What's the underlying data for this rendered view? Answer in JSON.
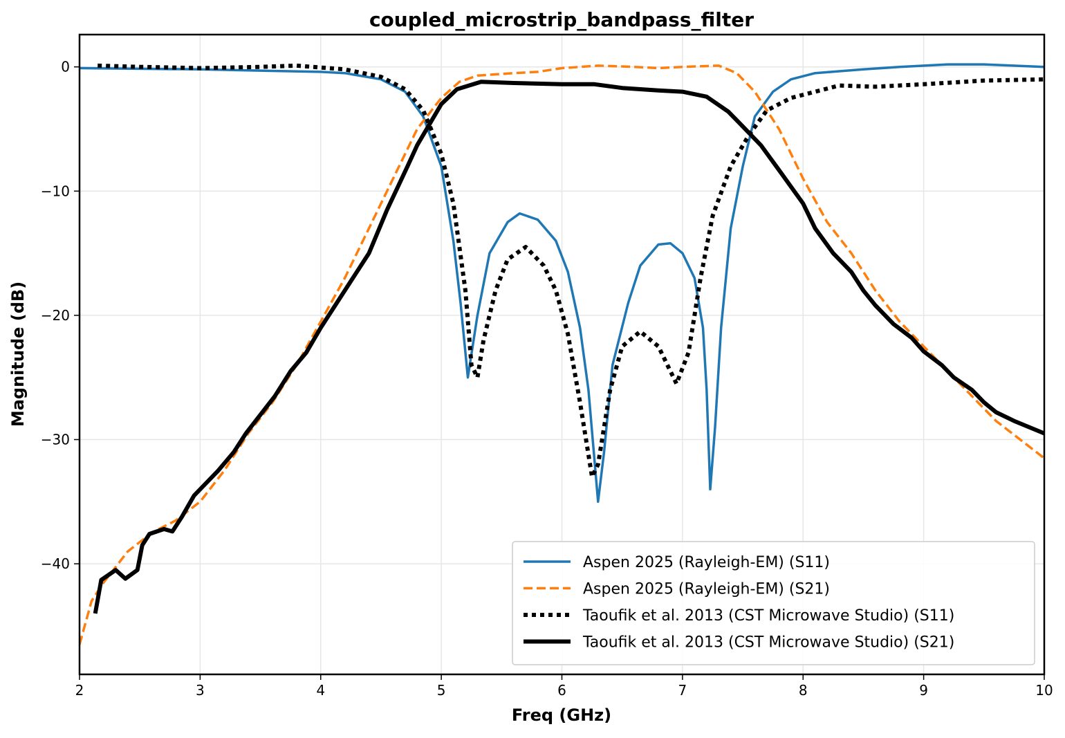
{
  "chart_data": {
    "type": "line",
    "title": "coupled_microstrip_bandpass_filter",
    "xlabel": "Freq (GHz)",
    "ylabel": "Magnitude (dB)",
    "xlim": [
      2,
      10
    ],
    "ylim": [
      -48.9,
      2.6
    ],
    "xticks": [
      2,
      3,
      4,
      5,
      6,
      7,
      8,
      9,
      10
    ],
    "yticks": [
      0,
      -10,
      -20,
      -30,
      -40
    ],
    "xtick_labels": [
      "2",
      "3",
      "4",
      "5",
      "6",
      "7",
      "8",
      "9",
      "10"
    ],
    "ytick_labels": [
      "0",
      "−10",
      "−20",
      "−30",
      "−40"
    ],
    "grid": true,
    "legend_position": "lower-right",
    "series": [
      {
        "name": "Aspen 2025 (Rayleigh-EM) (S11)",
        "color": "#1f77b4",
        "style": "solid",
        "x": [
          2,
          3,
          4,
          4.2,
          4.5,
          4.7,
          4.85,
          5.0,
          5.1,
          5.16,
          5.22,
          5.3,
          5.4,
          5.55,
          5.65,
          5.8,
          5.95,
          6.05,
          6.15,
          6.22,
          6.3,
          6.35,
          6.42,
          6.55,
          6.65,
          6.8,
          6.9,
          7.0,
          7.1,
          7.17,
          7.2,
          7.23,
          7.27,
          7.32,
          7.4,
          7.5,
          7.6,
          7.75,
          7.9,
          8.1,
          8.5,
          8.8,
          9.2,
          9.5,
          10
        ],
        "y": [
          -0.1,
          -0.2,
          -0.4,
          -0.5,
          -1,
          -2,
          -4,
          -8,
          -14,
          -19,
          -25,
          -20,
          -15,
          -12.5,
          -11.8,
          -12.3,
          -14,
          -16.5,
          -21,
          -26,
          -35,
          -31,
          -24,
          -19,
          -16,
          -14.3,
          -14.2,
          -15,
          -17,
          -21,
          -26,
          -34,
          -29,
          -21,
          -13,
          -8,
          -4,
          -2,
          -1,
          -0.5,
          -0.2,
          0,
          0.2,
          0.2,
          0
        ]
      },
      {
        "name": "Aspen 2025 (Rayleigh-EM) (S21)",
        "color": "#ff7f0e",
        "style": "dashed",
        "x": [
          2,
          2.1,
          2.2,
          2.4,
          2.6,
          2.8,
          3.0,
          3.2,
          3.4,
          3.6,
          3.8,
          4.0,
          4.2,
          4.4,
          4.6,
          4.8,
          5.0,
          5.15,
          5.3,
          5.6,
          5.8,
          6.0,
          6.3,
          6.6,
          6.8,
          7.0,
          7.3,
          7.45,
          7.6,
          7.8,
          8.0,
          8.2,
          8.4,
          8.6,
          8.8,
          9.0,
          9.2,
          9.4,
          9.6,
          9.8,
          10
        ],
        "y": [
          -46.5,
          -43,
          -41.5,
          -39,
          -37.5,
          -36.5,
          -35,
          -32.5,
          -29.5,
          -27,
          -24,
          -20.5,
          -17,
          -13,
          -9,
          -5,
          -2.5,
          -1.2,
          -0.7,
          -0.5,
          -0.4,
          -0.1,
          0.1,
          0,
          -0.1,
          0,
          0.1,
          -0.5,
          -2,
          -5,
          -9,
          -12.5,
          -15,
          -18,
          -20.5,
          -22.5,
          -24.5,
          -26.5,
          -28.5,
          -30,
          -31.5
        ]
      },
      {
        "name": "Taoufik et al. 2013 (CST Microwave Studio) (S11)",
        "color": "#000000",
        "style": "dotted",
        "x": [
          2.15,
          2.5,
          3.0,
          3.5,
          3.8,
          4.2,
          4.5,
          4.7,
          4.85,
          5.0,
          5.1,
          5.2,
          5.25,
          5.3,
          5.35,
          5.45,
          5.55,
          5.7,
          5.85,
          5.95,
          6.05,
          6.15,
          6.25,
          6.3,
          6.4,
          6.5,
          6.65,
          6.8,
          6.95,
          7.05,
          7.15,
          7.25,
          7.4,
          7.55,
          7.7,
          7.9,
          8.1,
          8.3,
          8.6,
          9.0,
          9.5,
          10
        ],
        "y": [
          0.1,
          0,
          -0.1,
          0,
          0.1,
          -0.2,
          -0.8,
          -1.8,
          -3.5,
          -7,
          -11,
          -18,
          -24,
          -25,
          -22,
          -18,
          -15.5,
          -14.5,
          -16,
          -18,
          -21.5,
          -27,
          -33,
          -32,
          -26,
          -22.5,
          -21.3,
          -22.5,
          -25.5,
          -23,
          -17,
          -12,
          -8,
          -5.5,
          -3.5,
          -2.5,
          -2,
          -1.5,
          -1.6,
          -1.4,
          -1.1,
          -1.0
        ]
      },
      {
        "name": "Taoufik et al. 2013 (CST Microwave Studio) (S21)",
        "color": "#000000",
        "style": "solid-thick",
        "x": [
          2.13,
          2.18,
          2.3,
          2.38,
          2.48,
          2.52,
          2.58,
          2.7,
          2.77,
          2.85,
          2.95,
          3.15,
          3.28,
          3.38,
          3.62,
          3.75,
          3.88,
          4.0,
          4.2,
          4.4,
          4.55,
          4.72,
          4.8,
          5.0,
          5.13,
          5.33,
          5.6,
          6.0,
          6.27,
          6.5,
          6.8,
          7.0,
          7.2,
          7.38,
          7.5,
          7.65,
          7.8,
          8.0,
          8.1,
          8.25,
          8.4,
          8.5,
          8.6,
          8.75,
          8.9,
          9.0,
          9.15,
          9.25,
          9.4,
          9.5,
          9.6,
          9.75,
          10
        ],
        "y": [
          -44,
          -41.3,
          -40.5,
          -41.2,
          -40.5,
          -38.5,
          -37.6,
          -37.2,
          -37.4,
          -36.2,
          -34.5,
          -32.5,
          -31,
          -29.5,
          -26.5,
          -24.5,
          -23,
          -21,
          -18,
          -15,
          -11.5,
          -8,
          -6.3,
          -3,
          -1.8,
          -1.2,
          -1.3,
          -1.4,
          -1.4,
          -1.7,
          -1.9,
          -2.0,
          -2.4,
          -3.6,
          -4.8,
          -6.3,
          -8.3,
          -11,
          -13,
          -15,
          -16.5,
          -18,
          -19.2,
          -20.7,
          -21.8,
          -22.9,
          -24,
          -25,
          -26,
          -27,
          -27.8,
          -28.5,
          -29.5
        ]
      }
    ]
  }
}
